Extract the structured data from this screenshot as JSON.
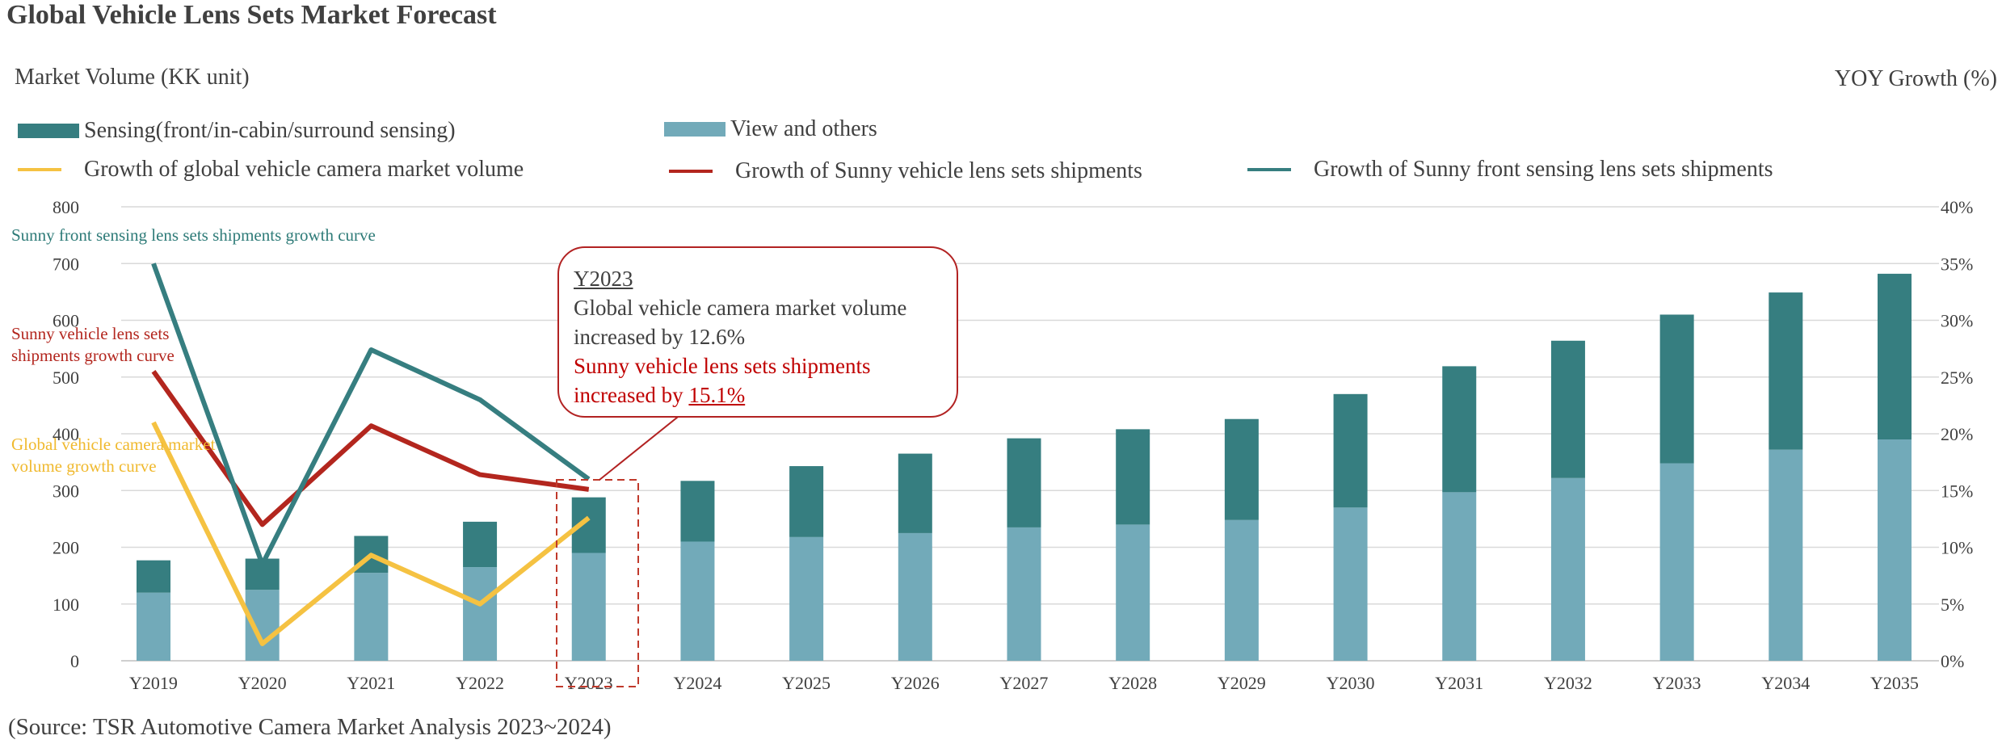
{
  "title": "Global Vehicle Lens Sets Market Forecast",
  "left_axis_label": "Market Volume (KK unit)",
  "right_axis_label": "YOY Growth (%)",
  "source": "(Source: TSR Automotive Camera Market Analysis 2023~2024)",
  "legend": [
    {
      "label": "Sensing(front/in-cabin/surround sensing)",
      "color": "#367e80"
    },
    {
      "label": "View and others",
      "color": "#72aab9"
    },
    {
      "label": "Growth of global vehicle camera market volume",
      "color": "#f5c242"
    },
    {
      "label": "Growth of Sunny vehicle lens sets shipments",
      "color": "#b3261e"
    },
    {
      "label": "Growth of Sunny front sensing lens sets shipments",
      "color": "#367e80"
    }
  ],
  "annotations": {
    "front_curve": "Sunny front sensing lens sets shipments   growth curve",
    "sunny_curve_1": "Sunny vehicle lens sets",
    "sunny_curve_2": "shipments   growth curve",
    "global_curve_1": "Global vehicle camera market",
    "global_curve_2": "volume growth curve",
    "callout_title": "Y2023",
    "callout_line1": "Global vehicle camera market volume",
    "callout_line2": "increased by 12.6%",
    "callout_line3": "Sunny vehicle lens sets shipments",
    "callout_line4_prefix": "increased by ",
    "callout_line4_value": "15.1%"
  },
  "chart_data": {
    "type": "bar",
    "stacked": true,
    "title": "Global Vehicle Lens Sets Market Forecast",
    "categories": [
      "Y2019",
      "Y2020",
      "Y2021",
      "Y2022",
      "Y2023",
      "Y2024",
      "Y2025",
      "Y2026",
      "Y2027",
      "Y2028",
      "Y2029",
      "Y2030",
      "Y2031",
      "Y2032",
      "Y2033",
      "Y2034",
      "Y2035"
    ],
    "series": [
      {
        "name": "View and others",
        "axis": "left",
        "values": [
          120,
          125,
          155,
          165,
          190,
          210,
          218,
          225,
          235,
          240,
          248,
          270,
          297,
          322,
          348,
          372,
          390
        ],
        "color": "#72aab9"
      },
      {
        "name": "Sensing(front/in-cabin/surround sensing)",
        "axis": "left",
        "values": [
          57,
          55,
          65,
          80,
          98,
          107,
          125,
          140,
          157,
          168,
          178,
          200,
          222,
          242,
          262,
          277,
          292
        ],
        "color": "#367e80"
      }
    ],
    "lines": [
      {
        "name": "Growth of global vehicle camera market volume",
        "axis": "right",
        "color": "#f5c242",
        "values": [
          21,
          1.5,
          9.3,
          5,
          12.6
        ]
      },
      {
        "name": "Growth of Sunny vehicle lens sets shipments",
        "axis": "right",
        "color": "#b3261e",
        "values": [
          25.5,
          12,
          20.7,
          16.4,
          15.1
        ]
      },
      {
        "name": "Growth of Sunny front sensing lens sets shipments",
        "axis": "right",
        "color": "#367e80",
        "values": [
          35,
          8.5,
          27.4,
          23,
          16
        ]
      }
    ],
    "ylim_left": [
      0,
      800
    ],
    "yticks_left": [
      0,
      100,
      200,
      300,
      400,
      500,
      600,
      700,
      800
    ],
    "ylim_right": [
      0,
      40
    ],
    "yticks_right": [
      "0%",
      "5%",
      "10%",
      "15%",
      "20%",
      "25%",
      "30%",
      "35%",
      "40%"
    ],
    "xlabel": "",
    "ylabel": "Market Volume (KK unit)",
    "ylabel_right": "YOY Growth (%)",
    "highlight_category": "Y2023"
  }
}
